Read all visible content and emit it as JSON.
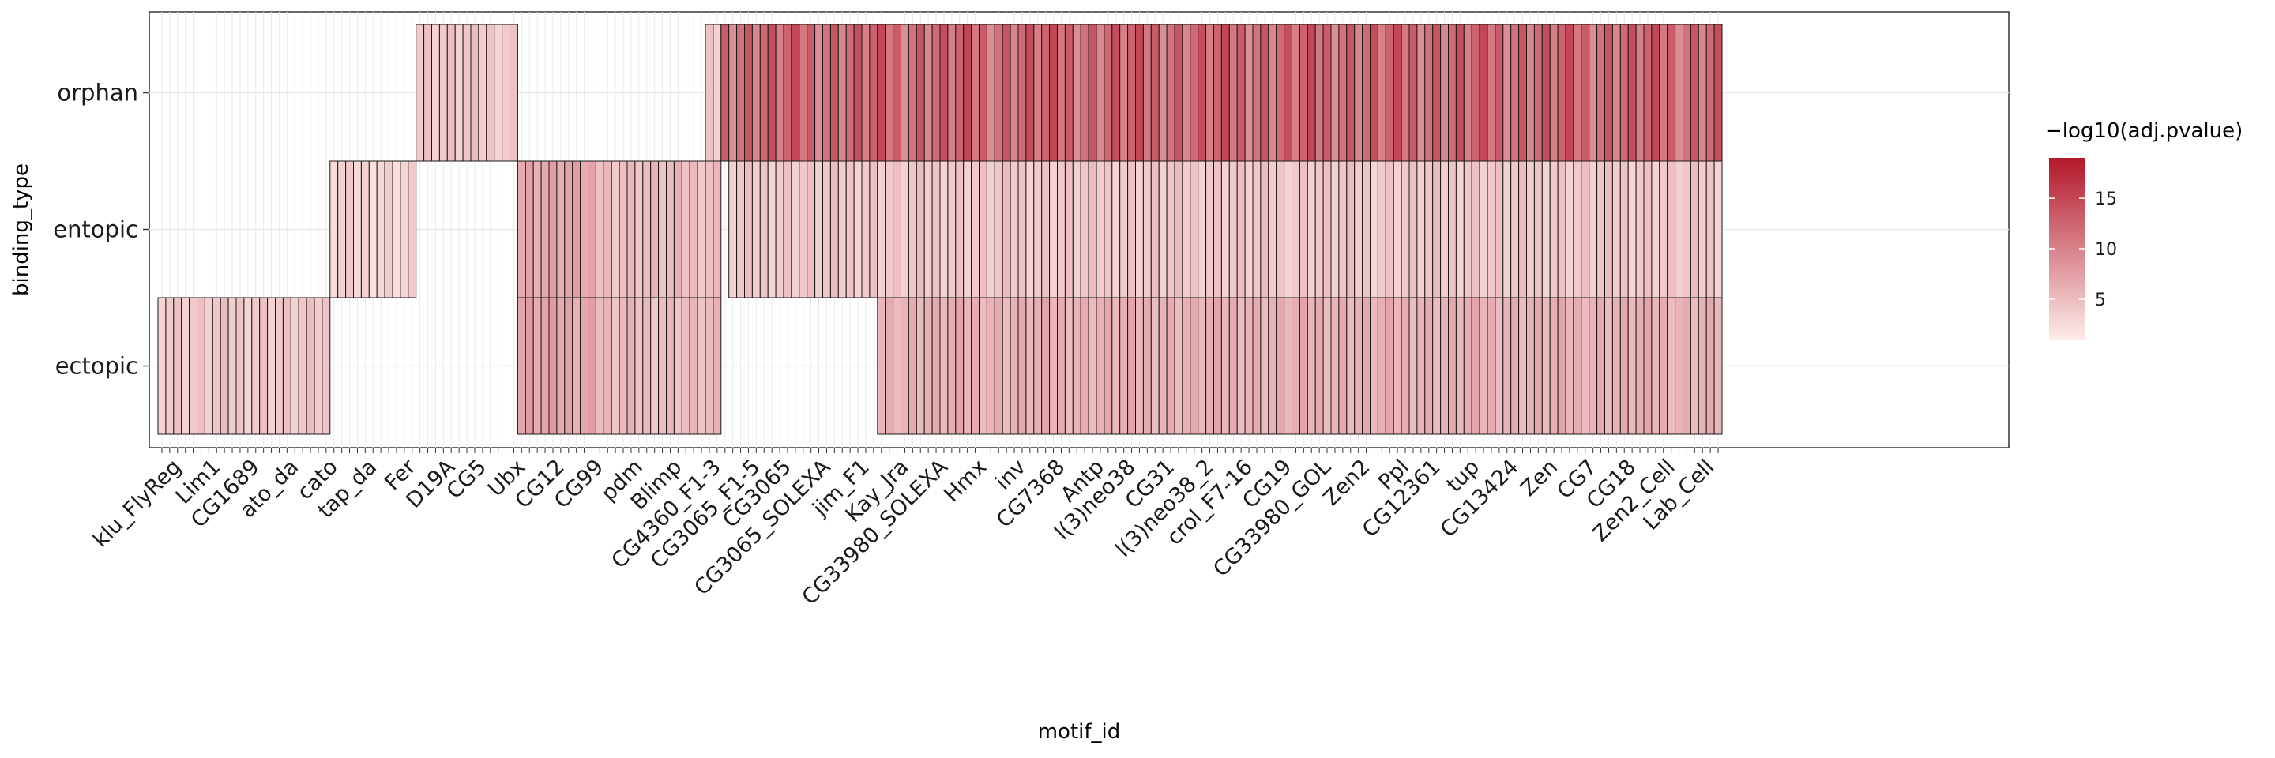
{
  "chart_data": {
    "type": "heatmap",
    "xlabel": "motif_id",
    "ylabel": "binding_type",
    "rows": [
      "orphan",
      "entopic",
      "ectopic"
    ],
    "legend": {
      "title": "−log10(adj.pvalue)",
      "placement": "right",
      "ticks": [
        5,
        10,
        15
      ],
      "range": [
        1,
        19
      ],
      "color_low": "#fdecea",
      "color_high": "#b2182b"
    },
    "x_tick_labels": [
      "klu_FlyReg",
      "Lim1",
      "CG1689",
      "ato_da",
      "cato",
      "tap_da",
      "Fer",
      "D19A",
      "CG5",
      "Ubx",
      "CG12",
      "CG99",
      "pdm",
      "Blimp",
      "CG4360_F1-3",
      "CG3065_F1-5",
      "CG3065",
      "CG3065_SOLEXA",
      "jim_F1",
      "Kay_Jra",
      "CG33980_SOLEXA",
      "Hmx",
      "inv",
      "CG7368",
      "Antp",
      "l(3)neo38",
      "CG31",
      "l(3)neo38_2",
      "crol_F7-16",
      "CG19",
      "CG33980_GOL",
      "Zen2",
      "Ppl",
      "CG12361",
      "tup",
      "CG13424",
      "Zen",
      "CG7",
      "CG18",
      "Zen2_Cell",
      "Lab_Cell"
    ],
    "segments": [
      {
        "row": "ectopic",
        "start": 0,
        "end": 22,
        "value": 4
      },
      {
        "row": "entopic",
        "start": 22,
        "end": 33,
        "value": 3
      },
      {
        "row": "orphan",
        "start": 33,
        "end": 46,
        "value": 4
      },
      {
        "row": "entopic",
        "start": 46,
        "end": 56,
        "value": 7
      },
      {
        "row": "ectopic",
        "start": 46,
        "end": 56,
        "value": 7
      },
      {
        "row": "entopic",
        "start": 56,
        "end": 72,
        "value": 5
      },
      {
        "row": "ectopic",
        "start": 56,
        "end": 72,
        "value": 5
      },
      {
        "row": "orphan",
        "start": 70,
        "end": 72,
        "value": 4
      },
      {
        "row": "orphan",
        "start": 72,
        "end": 200,
        "value": 12
      },
      {
        "row": "entopic",
        "start": 73,
        "end": 200,
        "value": 4
      },
      {
        "row": "ectopic",
        "start": 92,
        "end": 200,
        "value": 6
      }
    ]
  }
}
